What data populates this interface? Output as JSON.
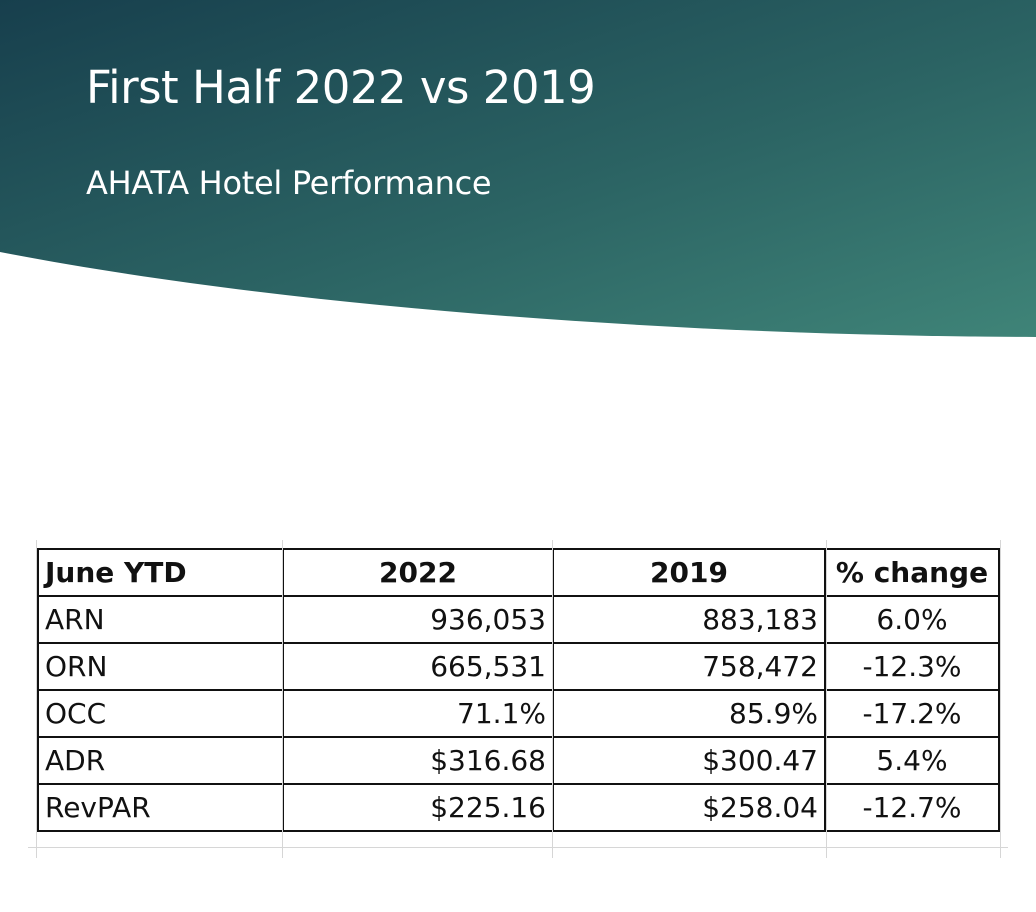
{
  "slide": {
    "title": "First Half 2022 vs 2019",
    "subtitle": "AHATA Hotel Performance",
    "colors": {
      "band_dark": "#173f4d",
      "band_light": "#3f8478",
      "text_on_band": "#ffffff",
      "table_border": "#111111"
    }
  },
  "table": {
    "headers": [
      "June YTD",
      "2022",
      "2019",
      "% change"
    ],
    "rows": [
      [
        "ARN",
        "936,053",
        "883,183",
        "6.0%"
      ],
      [
        "ORN",
        "665,531",
        "758,472",
        "-12.3%"
      ],
      [
        "OCC",
        "71.1%",
        "85.9%",
        "-17.2%"
      ],
      [
        "ADR",
        "$316.68",
        "$300.47",
        "5.4%"
      ],
      [
        "RevPAR",
        "$225.16",
        "$258.04",
        "-12.7%"
      ]
    ]
  }
}
